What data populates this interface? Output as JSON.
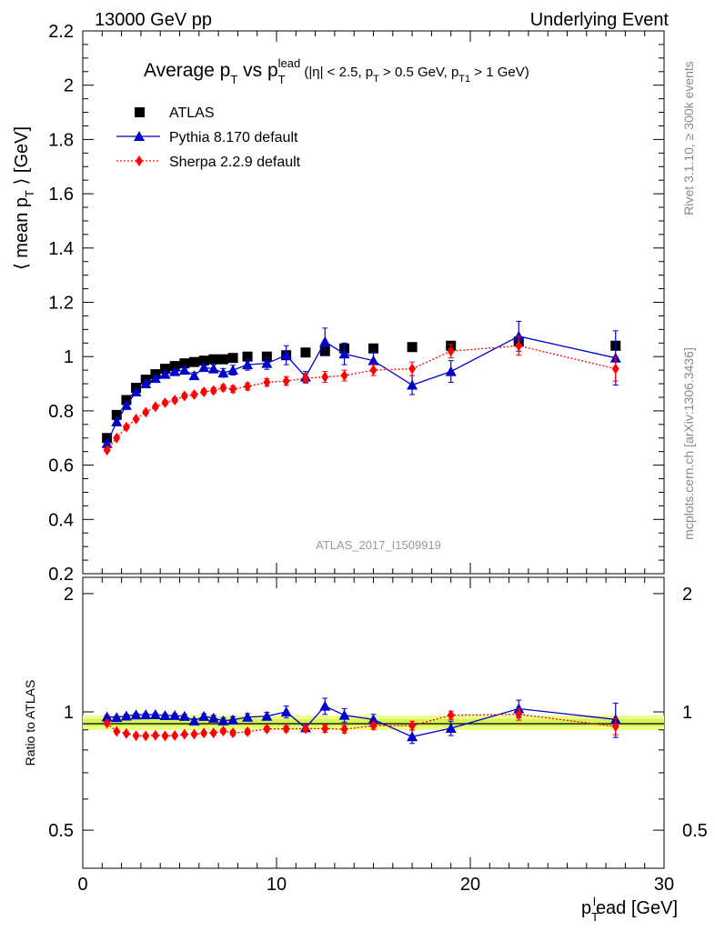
{
  "header": {
    "left": "13000 GeV pp",
    "right": "Underlying Event"
  },
  "side_labels": {
    "rivet": "Rivet 3.1.10, ≥ 300k events",
    "mcplots": "mcplots.cern.ch [arXiv:1306.3436]"
  },
  "watermark": "ATLAS_2017_I1509919",
  "chart_data": {
    "type": "scatter",
    "title": "Average p_T vs p_T^lead (|η| < 2.5, p_T > 0.5 GeV, p_T1 > 1 GeV)",
    "xlabel": "p_T^lead [GeV]",
    "ylabel": "⟨ mean p_T ⟩ [GeV]",
    "ratio_ylabel": "Ratio to ATLAS",
    "xlim": [
      0,
      30
    ],
    "ylim": [
      0.2,
      2.2
    ],
    "ratio_ylim": [
      0.4,
      2.2
    ],
    "ratio_scale": "log",
    "x_ticks": [
      "0",
      "10",
      "20",
      "30"
    ],
    "y_ticks": [
      "0.2",
      "0.4",
      "0.6",
      "0.8",
      "1",
      "1.2",
      "1.4",
      "1.6",
      "1.8",
      "2",
      "2.2"
    ],
    "ratio_ticks": [
      "0.5",
      "1",
      "2"
    ],
    "legend_position": "top-left",
    "x": [
      1.25,
      1.75,
      2.25,
      2.75,
      3.25,
      3.75,
      4.25,
      4.75,
      5.25,
      5.75,
      6.25,
      6.75,
      7.25,
      7.75,
      8.5,
      9.5,
      10.5,
      11.5,
      12.5,
      13.5,
      15.0,
      17.0,
      19.0,
      22.5,
      27.5
    ],
    "series": [
      {
        "name": "ATLAS",
        "color": "#000000",
        "marker": "square",
        "values": [
          0.7,
          0.785,
          0.84,
          0.885,
          0.915,
          0.935,
          0.955,
          0.965,
          0.975,
          0.98,
          0.985,
          0.99,
          0.99,
          0.995,
          1.0,
          1.0,
          1.005,
          1.015,
          1.02,
          1.03,
          1.03,
          1.035,
          1.04,
          1.055,
          1.04
        ],
        "errors": [
          0,
          0,
          0,
          0,
          0,
          0,
          0,
          0,
          0,
          0,
          0,
          0,
          0,
          0,
          0,
          0,
          0,
          0,
          0,
          0,
          0,
          0,
          0,
          0,
          0
        ]
      },
      {
        "name": "Pythia 8.170 default",
        "color": "#0000cc",
        "marker": "triangle",
        "line": "solid",
        "values": [
          0.68,
          0.76,
          0.82,
          0.87,
          0.9,
          0.92,
          0.935,
          0.945,
          0.95,
          0.93,
          0.96,
          0.955,
          0.94,
          0.95,
          0.97,
          0.975,
          1.005,
          0.925,
          1.055,
          1.01,
          0.985,
          0.895,
          0.945,
          1.075,
          0.995
        ],
        "errors": [
          0.005,
          0.006,
          0.007,
          0.008,
          0.008,
          0.009,
          0.01,
          0.01,
          0.012,
          0.012,
          0.014,
          0.015,
          0.016,
          0.018,
          0.02,
          0.022,
          0.035,
          0.02,
          0.05,
          0.04,
          0.03,
          0.035,
          0.04,
          0.055,
          0.1
        ]
      },
      {
        "name": "Sherpa 2.2.9 default",
        "color": "#ff0000",
        "marker": "diamond",
        "line": "dotted",
        "values": [
          0.655,
          0.7,
          0.74,
          0.77,
          0.795,
          0.815,
          0.83,
          0.84,
          0.855,
          0.86,
          0.87,
          0.875,
          0.885,
          0.88,
          0.89,
          0.905,
          0.91,
          0.92,
          0.925,
          0.93,
          0.95,
          0.955,
          1.02,
          1.04,
          0.955
        ],
        "errors": [
          0.005,
          0.005,
          0.006,
          0.006,
          0.007,
          0.007,
          0.008,
          0.008,
          0.009,
          0.009,
          0.01,
          0.01,
          0.011,
          0.012,
          0.013,
          0.014,
          0.016,
          0.018,
          0.02,
          0.02,
          0.02,
          0.025,
          0.025,
          0.035,
          0.045
        ]
      }
    ]
  }
}
